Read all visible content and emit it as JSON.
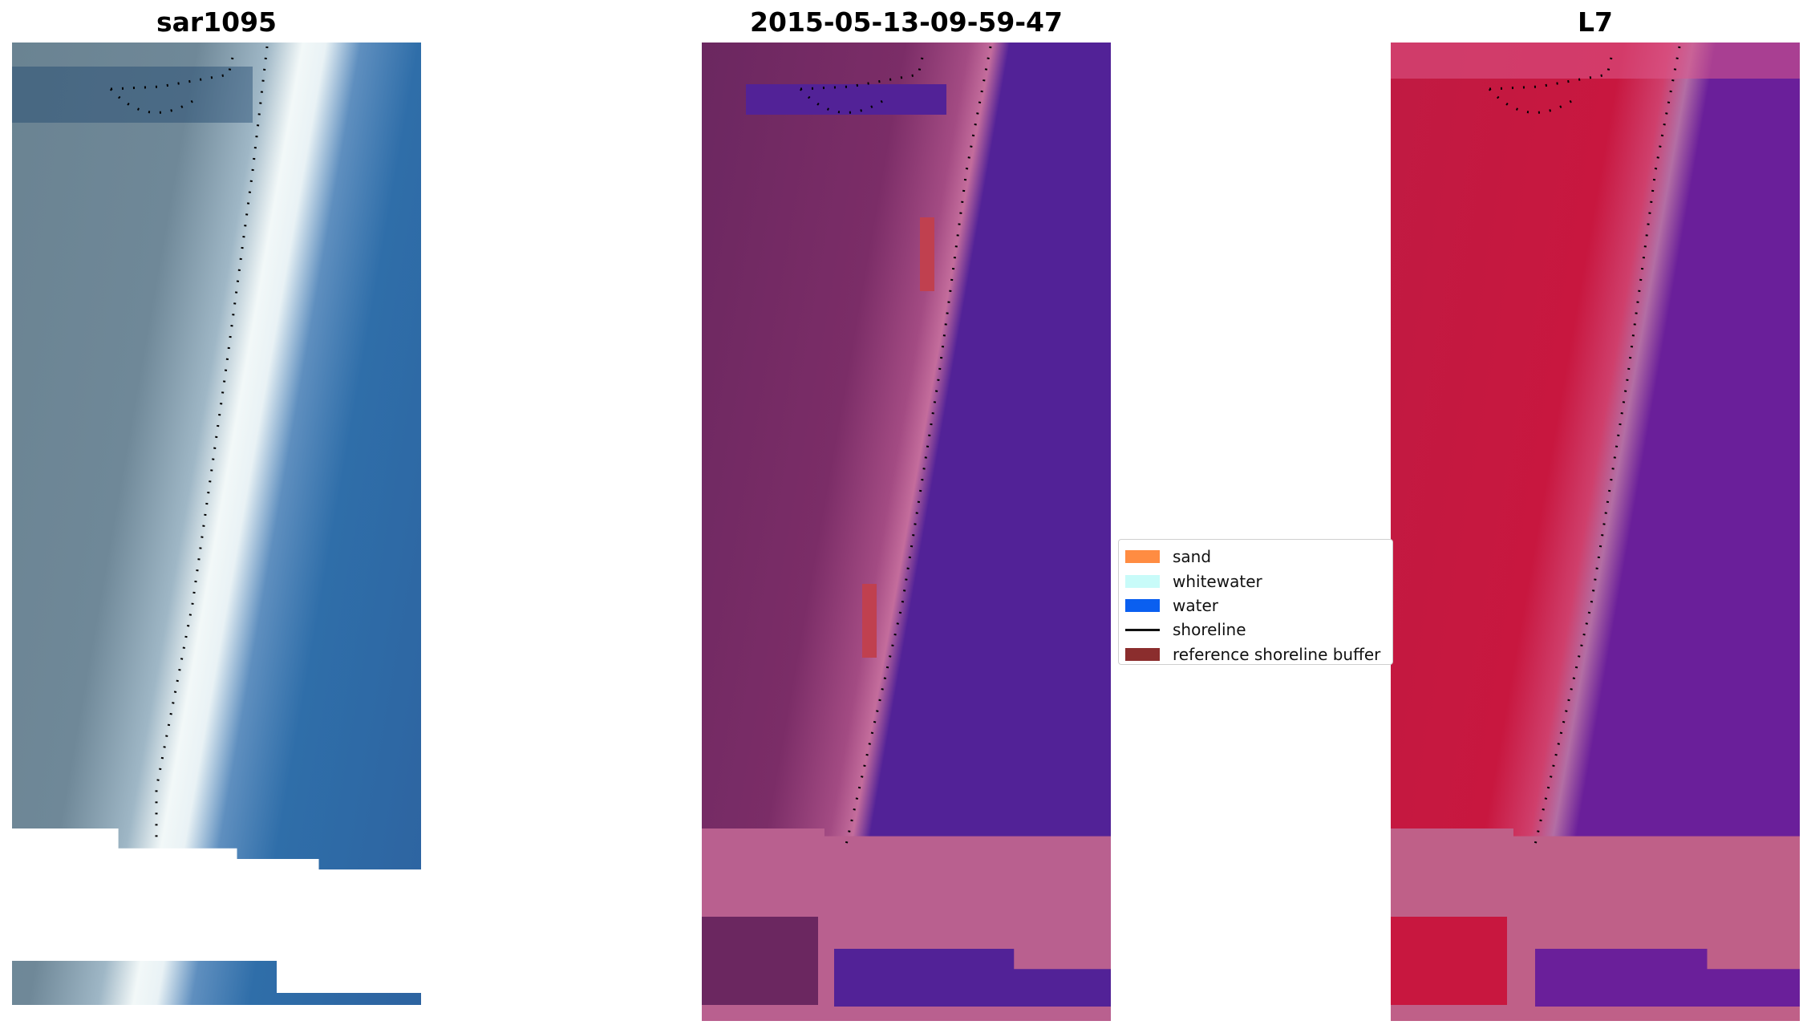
{
  "panels": [
    {
      "title": "sar1095"
    },
    {
      "title": "2015-05-13-09-59-47"
    },
    {
      "title": "L7"
    }
  ],
  "legend": {
    "items": [
      {
        "label": "sand",
        "color": "#ff8c42",
        "type": "patch"
      },
      {
        "label": "whitewater",
        "color": "#c8fbf9",
        "type": "patch"
      },
      {
        "label": "water",
        "color": "#0a5ff0",
        "type": "patch"
      },
      {
        "label": "shoreline",
        "color": "#111111",
        "type": "line"
      },
      {
        "label": "reference shoreline buffer",
        "color": "#8b2d2d",
        "type": "patch"
      }
    ]
  },
  "colors": {
    "rgb_land": "#6b8594",
    "rgb_water": "#2e6aa6",
    "rgb_surf": "#eef6f6",
    "class_land": "#7a2c66",
    "class_water": "#522297",
    "class_buffer": "#b9608f",
    "ndwi_land": "#c8173f",
    "ndwi_water": "#6a1f9a",
    "ndwi_buffer": "#bf6088"
  }
}
